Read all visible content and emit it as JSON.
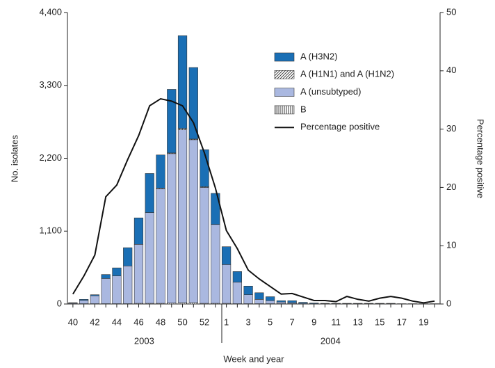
{
  "chart_data": {
    "type": "bar",
    "stacked": true,
    "y_label": "No. isolates",
    "y2_label": "Percentage positive",
    "x_label": "Week and year",
    "x_group_labels": [
      "2003",
      "2004"
    ],
    "categories": [
      "40",
      null,
      "42",
      null,
      "44",
      null,
      "46",
      null,
      "48",
      null,
      "50",
      null,
      "52",
      null,
      "1",
      null,
      "3",
      null,
      "5",
      null,
      "7",
      null,
      "9",
      null,
      "11",
      null,
      "13",
      null,
      "15",
      null,
      "17",
      null,
      "19",
      null
    ],
    "series": [
      {
        "name": "A (H3N2)",
        "color": "#1a6fb5",
        "values": [
          5,
          15,
          15,
          60,
          120,
          275,
          400,
          590,
          500,
          960,
          1400,
          1080,
          560,
          470,
          270,
          160,
          130,
          100,
          60,
          20,
          30,
          15,
          10,
          5,
          5,
          5,
          5,
          5,
          5,
          5,
          0,
          0,
          0,
          0
        ]
      },
      {
        "name": "A (H1N1) and A (H1N2)",
        "color": "#ffffff",
        "pattern": "diagonal",
        "values": [
          0,
          0,
          0,
          0,
          0,
          0,
          0,
          0,
          10,
          10,
          20,
          10,
          10,
          0,
          0,
          0,
          0,
          0,
          0,
          0,
          0,
          0,
          0,
          0,
          0,
          0,
          0,
          0,
          0,
          0,
          0,
          0,
          0,
          0
        ]
      },
      {
        "name": "A (unsubtyped)",
        "color": "#aab8e0",
        "values": [
          10,
          50,
          120,
          380,
          420,
          570,
          890,
          1370,
          1730,
          2255,
          2610,
          2460,
          1750,
          1190,
          585,
          325,
          135,
          65,
          45,
          25,
          15,
          10,
          5,
          5,
          5,
          5,
          5,
          5,
          5,
          5,
          5,
          5,
          5,
          5
        ]
      },
      {
        "name": "B",
        "color": "#ffffff",
        "pattern": "vertical",
        "values": [
          5,
          5,
          5,
          5,
          5,
          5,
          10,
          10,
          10,
          15,
          20,
          20,
          10,
          10,
          10,
          5,
          5,
          5,
          5,
          5,
          5,
          0,
          0,
          0,
          0,
          0,
          0,
          0,
          0,
          0,
          0,
          0,
          0,
          0
        ]
      },
      {
        "name": "Percentage positive",
        "type": "line",
        "axis": "y2",
        "color": "#111111",
        "values": [
          1.7,
          4.8,
          8.4,
          18.4,
          20.4,
          24.8,
          28.9,
          34.0,
          35.2,
          34.8,
          34.0,
          31.1,
          25.9,
          19.9,
          12.6,
          9.5,
          5.8,
          4.3,
          3.0,
          1.7,
          1.8,
          1.2,
          0.6,
          0.6,
          0.4,
          1.3,
          0.8,
          0.5,
          1.0,
          1.3,
          1.0,
          0.5,
          0.2,
          0.5
        ]
      }
    ],
    "ylim": [
      0,
      4400
    ],
    "yticks": [
      0,
      {
        "value": 1100,
        "label": "1,100"
      },
      {
        "value": 2200,
        "label": "2,200"
      },
      {
        "value": 3300,
        "label": "3,300"
      },
      {
        "value": 4400,
        "label": "4,400"
      }
    ],
    "y2lim": [
      0,
      50
    ],
    "y2ticks": [
      0,
      10,
      20,
      30,
      40,
      50
    ]
  }
}
